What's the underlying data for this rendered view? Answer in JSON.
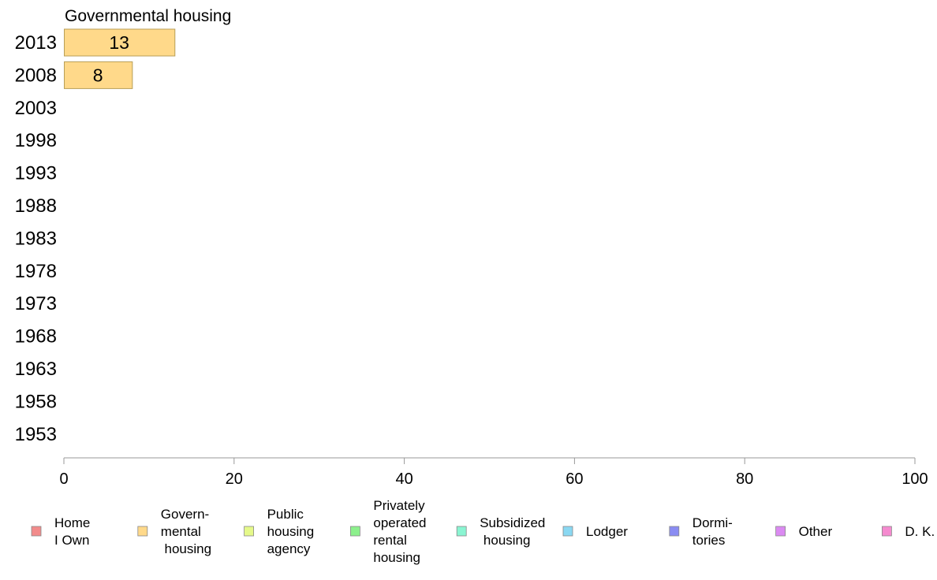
{
  "chart_data": {
    "type": "bar",
    "orientation": "horizontal",
    "title": "Governmental housing",
    "categories": [
      "2013",
      "2008",
      "2003",
      "1998",
      "1993",
      "1988",
      "1983",
      "1978",
      "1973",
      "1968",
      "1963",
      "1958",
      "1953"
    ],
    "series": [
      {
        "name": "Governmental housing",
        "values": [
          13,
          8,
          null,
          null,
          null,
          null,
          null,
          null,
          null,
          null,
          null,
          null,
          null
        ]
      }
    ],
    "bar_labels": [
      "13",
      "8",
      "",
      "",
      "",
      "",
      "",
      "",
      "",
      "",
      "",
      "",
      ""
    ],
    "bar_color": "#FFD98A",
    "bar_stroke": "#B89E57",
    "xlim": [
      0,
      100
    ],
    "xticks": [
      0,
      20,
      40,
      60,
      80,
      100
    ],
    "xtick_labels": [
      "0",
      "20",
      "40",
      "60",
      "80",
      "100"
    ],
    "grid": false,
    "legend_position": "bottom",
    "legend": [
      {
        "lines": [
          "Home",
          "I Own"
        ],
        "color": "#F28B8B"
      },
      {
        "lines": [
          "Govern-",
          "mental",
          " housing"
        ],
        "color": "#FFD98A"
      },
      {
        "lines": [
          "Public",
          "housing",
          "agency"
        ],
        "color": "#E5F98A"
      },
      {
        "lines": [
          "Privately",
          "operated",
          "rental",
          "housing"
        ],
        "color": "#8CF08C"
      },
      {
        "lines": [
          "Subsidized",
          " housing"
        ],
        "color": "#8AF5D2"
      },
      {
        "lines": [
          "Lodger"
        ],
        "color": "#8AD8F2"
      },
      {
        "lines": [
          "Dormi-",
          "tories"
        ],
        "color": "#8A8CF2"
      },
      {
        "lines": [
          "Other"
        ],
        "color": "#DB8AF2"
      },
      {
        "lines": [
          "D. K."
        ],
        "color": "#F58ACF"
      }
    ]
  }
}
